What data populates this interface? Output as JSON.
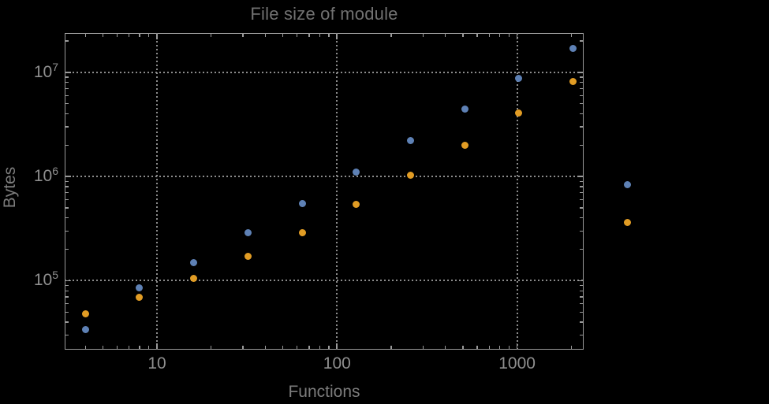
{
  "colors": {
    "background": "#000000",
    "frame": "#9b9b9b",
    "grid": "#8c8c8c",
    "tick_label": "#8f8f8f",
    "title": "#717171",
    "axis_label": "#7c7c7c",
    "series_blue": "#5e81b5",
    "series_orange": "#e19c24"
  },
  "chart_data": {
    "type": "scatter",
    "title": "File size of module",
    "xlabel": "Functions",
    "ylabel": "Bytes",
    "xscale": "log",
    "yscale": "log",
    "xlim": [
      3.1,
      2330
    ],
    "ylim": [
      22000,
      24000000
    ],
    "grid": "dotted",
    "legend": "none",
    "frame_ticks_mirrored": true,
    "x_ticks": [
      {
        "label": "10",
        "value": 10
      },
      {
        "label": "100",
        "value": 100
      },
      {
        "label": "1000",
        "value": 1000
      }
    ],
    "y_ticks": [
      {
        "mantissa": "10",
        "exponent": "5",
        "value": 100000
      },
      {
        "mantissa": "10",
        "exponent": "6",
        "value": 1000000
      },
      {
        "mantissa": "10",
        "exponent": "7",
        "value": 10000000
      }
    ],
    "x": [
      4,
      8,
      16,
      32,
      64,
      128,
      256,
      512,
      1024,
      2048,
      4096
    ],
    "series": [
      {
        "name": "blue-series",
        "color": "#5e81b5",
        "values": [
          34000,
          86000,
          150000,
          290000,
          550000,
          1100000,
          2200000,
          4400000,
          8700000,
          17000000,
          830000
        ]
      },
      {
        "name": "orange-series",
        "color": "#e19c24",
        "values": [
          48000,
          69000,
          105000,
          170000,
          290000,
          540000,
          1030000,
          2000000,
          4100000,
          8200000,
          360000
        ]
      }
    ],
    "note": "last x value (4096) is plotted outside the right edge of the plot frame"
  }
}
